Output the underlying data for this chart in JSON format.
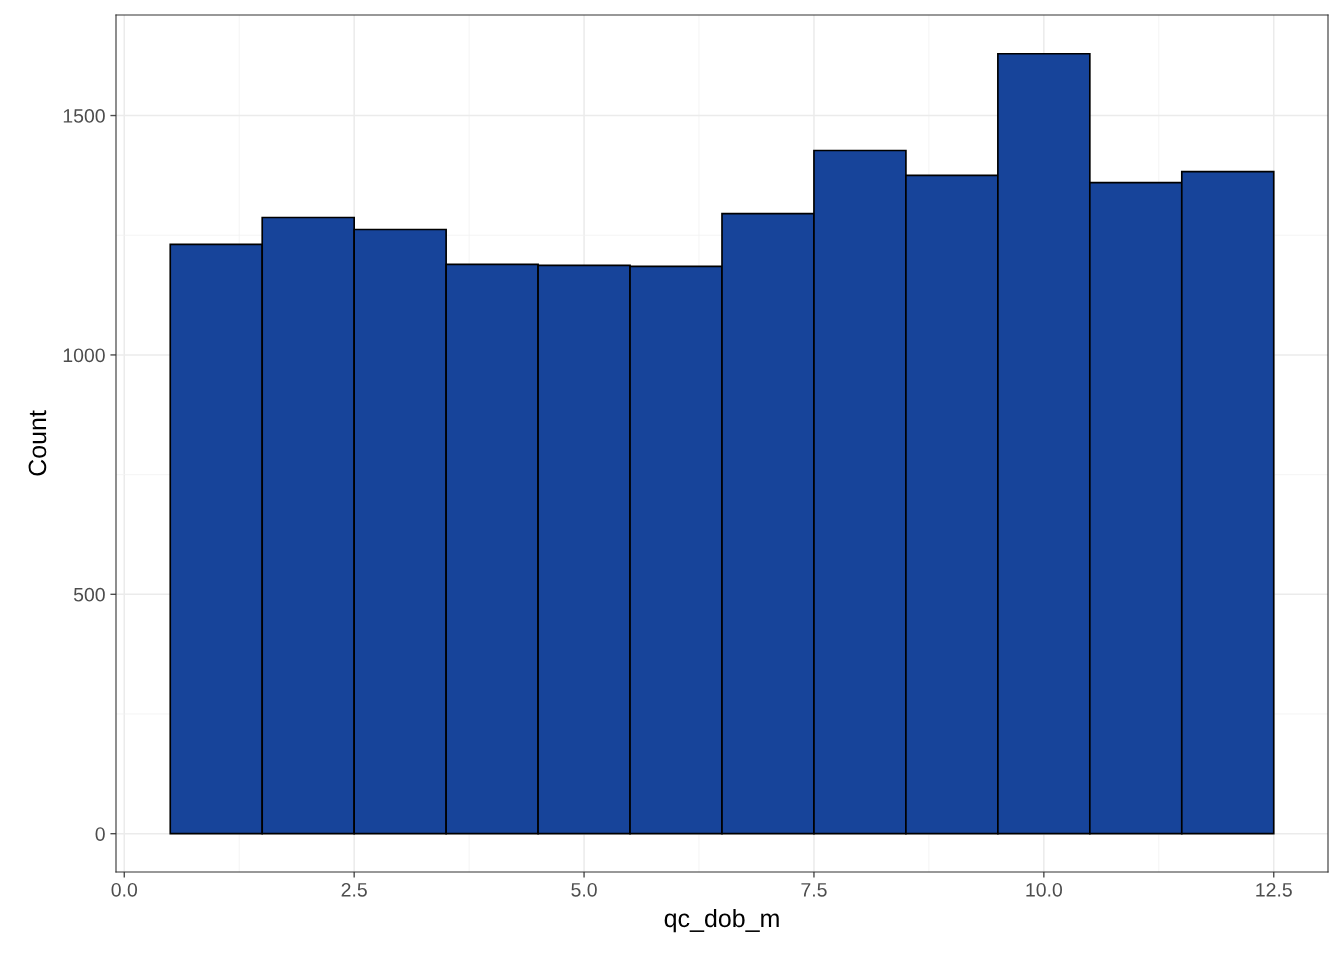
{
  "chart_data": {
    "type": "histogram",
    "xlabel": "qc_dob_m",
    "ylabel": "Count",
    "bins": [
      0.5,
      1.5,
      2.5,
      3.5,
      4.5,
      5.5,
      6.5,
      7.5,
      8.5,
      9.5,
      10.5,
      11.5,
      12.5
    ],
    "values": [
      1231,
      1287,
      1262,
      1189,
      1187,
      1185,
      1295,
      1427,
      1375,
      1629,
      1360,
      1383
    ],
    "color": "#17449a",
    "xlim": [
      -0.09,
      13.09
    ],
    "ylim": [
      -80,
      1710
    ],
    "xticks": [
      {
        "value": 0,
        "label": "0.0"
      },
      2.5,
      {
        "value": 5,
        "label": "5.0"
      },
      7.5,
      {
        "value": 10,
        "label": "10.0"
      },
      12.5
    ],
    "yticks": [
      0,
      500,
      1000,
      1500
    ],
    "grid": true
  }
}
